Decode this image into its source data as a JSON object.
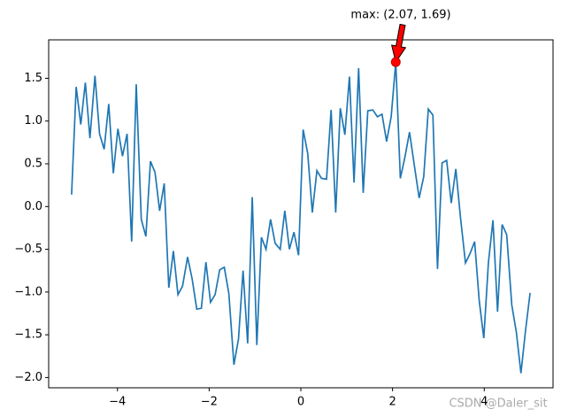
{
  "chart_data": {
    "type": "line",
    "x": [
      -5.0,
      -4.9,
      -4.8,
      -4.7,
      -4.6,
      -4.49,
      -4.39,
      -4.29,
      -4.19,
      -4.09,
      -3.99,
      -3.89,
      -3.79,
      -3.69,
      -3.59,
      -3.48,
      -3.38,
      -3.28,
      -3.18,
      -3.08,
      -2.98,
      -2.88,
      -2.78,
      -2.68,
      -2.58,
      -2.47,
      -2.37,
      -2.27,
      -2.17,
      -2.07,
      -1.97,
      -1.87,
      -1.77,
      -1.67,
      -1.57,
      -1.46,
      -1.36,
      -1.26,
      -1.16,
      -1.06,
      -0.96,
      -0.86,
      -0.76,
      -0.66,
      -0.56,
      -0.45,
      -0.35,
      -0.25,
      -0.15,
      -0.05,
      0.05,
      0.15,
      0.25,
      0.35,
      0.45,
      0.56,
      0.66,
      0.76,
      0.86,
      0.96,
      1.06,
      1.16,
      1.26,
      1.36,
      1.46,
      1.57,
      1.67,
      1.77,
      1.87,
      1.97,
      2.07,
      2.17,
      2.27,
      2.37,
      2.47,
      2.58,
      2.68,
      2.78,
      2.88,
      2.98,
      3.08,
      3.18,
      3.28,
      3.38,
      3.48,
      3.59,
      3.69,
      3.79,
      3.89,
      3.99,
      4.09,
      4.19,
      4.29,
      4.39,
      4.49,
      4.6,
      4.7,
      4.8,
      4.9,
      5.0
    ],
    "series": [
      {
        "color": "#1f77b4",
        "values": [
          0.14,
          1.4,
          0.96,
          1.45,
          0.8,
          1.53,
          0.85,
          0.67,
          1.2,
          0.39,
          0.91,
          0.59,
          0.85,
          -0.41,
          1.43,
          -0.15,
          -0.35,
          0.53,
          0.4,
          -0.05,
          0.27,
          -0.95,
          -0.52,
          -1.03,
          -0.93,
          -0.59,
          -0.85,
          -1.2,
          -1.19,
          -0.65,
          -1.12,
          -1.03,
          -0.74,
          -0.71,
          -1.02,
          -1.85,
          -1.55,
          -0.75,
          -1.6,
          0.11,
          -1.62,
          -0.36,
          -0.5,
          -0.15,
          -0.43,
          -0.5,
          -0.05,
          -0.5,
          -0.3,
          -0.57,
          0.9,
          0.62,
          -0.07,
          0.42,
          0.33,
          0.32,
          1.13,
          -0.07,
          1.15,
          0.84,
          1.52,
          0.28,
          1.62,
          0.16,
          1.12,
          1.13,
          1.05,
          1.08,
          0.76,
          1.05,
          1.69,
          0.33,
          0.58,
          0.87,
          0.5,
          0.1,
          0.35,
          1.14,
          1.07,
          -0.73,
          0.51,
          0.54,
          0.04,
          0.44,
          -0.12,
          -0.66,
          -0.55,
          -0.41,
          -1.1,
          -1.54,
          -0.66,
          -0.16,
          -1.23,
          -0.21,
          -0.33,
          -1.15,
          -1.47,
          -1.95,
          -1.45,
          -1.01
        ]
      }
    ],
    "xlim": [
      -5.5,
      5.5
    ],
    "ylim": [
      -2.12,
      1.95
    ],
    "xticks": [
      {
        "value": -4,
        "label": "−4"
      },
      {
        "value": -2,
        "label": "−2"
      },
      0,
      2,
      4
    ],
    "yticks": [
      {
        "value": -2.0,
        "label": "−2.0"
      },
      {
        "value": -1.5,
        "label": "−1.5"
      },
      {
        "value": -1.0,
        "label": "−1.0"
      },
      {
        "value": -0.5,
        "label": "−0.5"
      },
      {
        "value": 0.0,
        "label": "0.0"
      },
      {
        "value": 0.5,
        "label": "0.5"
      },
      {
        "value": 1.0,
        "label": "1.0"
      },
      {
        "value": 1.5,
        "label": "1.5"
      }
    ],
    "annotation": {
      "text": "max: (2.07, 1.69)",
      "x": 2.07,
      "y": 1.69,
      "color": "#ff0000"
    },
    "watermark": "CSDN @Daler_sit"
  }
}
